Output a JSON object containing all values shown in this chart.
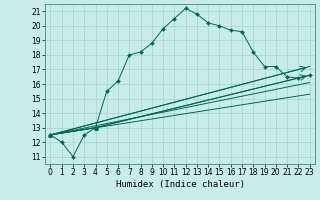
{
  "xlabel": "Humidex (Indice chaleur)",
  "bg_color": "#c8ede8",
  "grid_color": "#a8d8d0",
  "line_color": "#006655",
  "xlim": [
    -0.5,
    23.5
  ],
  "ylim": [
    10.5,
    21.5
  ],
  "xticks": [
    0,
    1,
    2,
    3,
    4,
    5,
    6,
    7,
    8,
    9,
    10,
    11,
    12,
    13,
    14,
    15,
    16,
    17,
    18,
    19,
    20,
    21,
    22,
    23
  ],
  "yticks": [
    11,
    12,
    13,
    14,
    15,
    16,
    17,
    18,
    19,
    20,
    21
  ],
  "series1_x": [
    0,
    1,
    2,
    3,
    4,
    5,
    6,
    7,
    8,
    9,
    10,
    11,
    12,
    13,
    14,
    15,
    16,
    17,
    18,
    19,
    20,
    21,
    22,
    23
  ],
  "series1_y": [
    12.5,
    12.0,
    11.0,
    12.5,
    13.0,
    15.5,
    16.2,
    18.0,
    18.2,
    18.8,
    19.8,
    20.5,
    21.2,
    20.8,
    20.2,
    20.0,
    19.7,
    19.6,
    18.2,
    17.2,
    17.2,
    16.5,
    16.4,
    16.6
  ],
  "series2_x": [
    0,
    4,
    23
  ],
  "series2_y": [
    12.5,
    13.0,
    16.6
  ],
  "series3_x": [
    0,
    23
  ],
  "series3_y": [
    12.5,
    17.2
  ],
  "series4_x": [
    0,
    23
  ],
  "series4_y": [
    12.5,
    16.1
  ],
  "series5_x": [
    0,
    23
  ],
  "series5_y": [
    12.5,
    15.3
  ]
}
